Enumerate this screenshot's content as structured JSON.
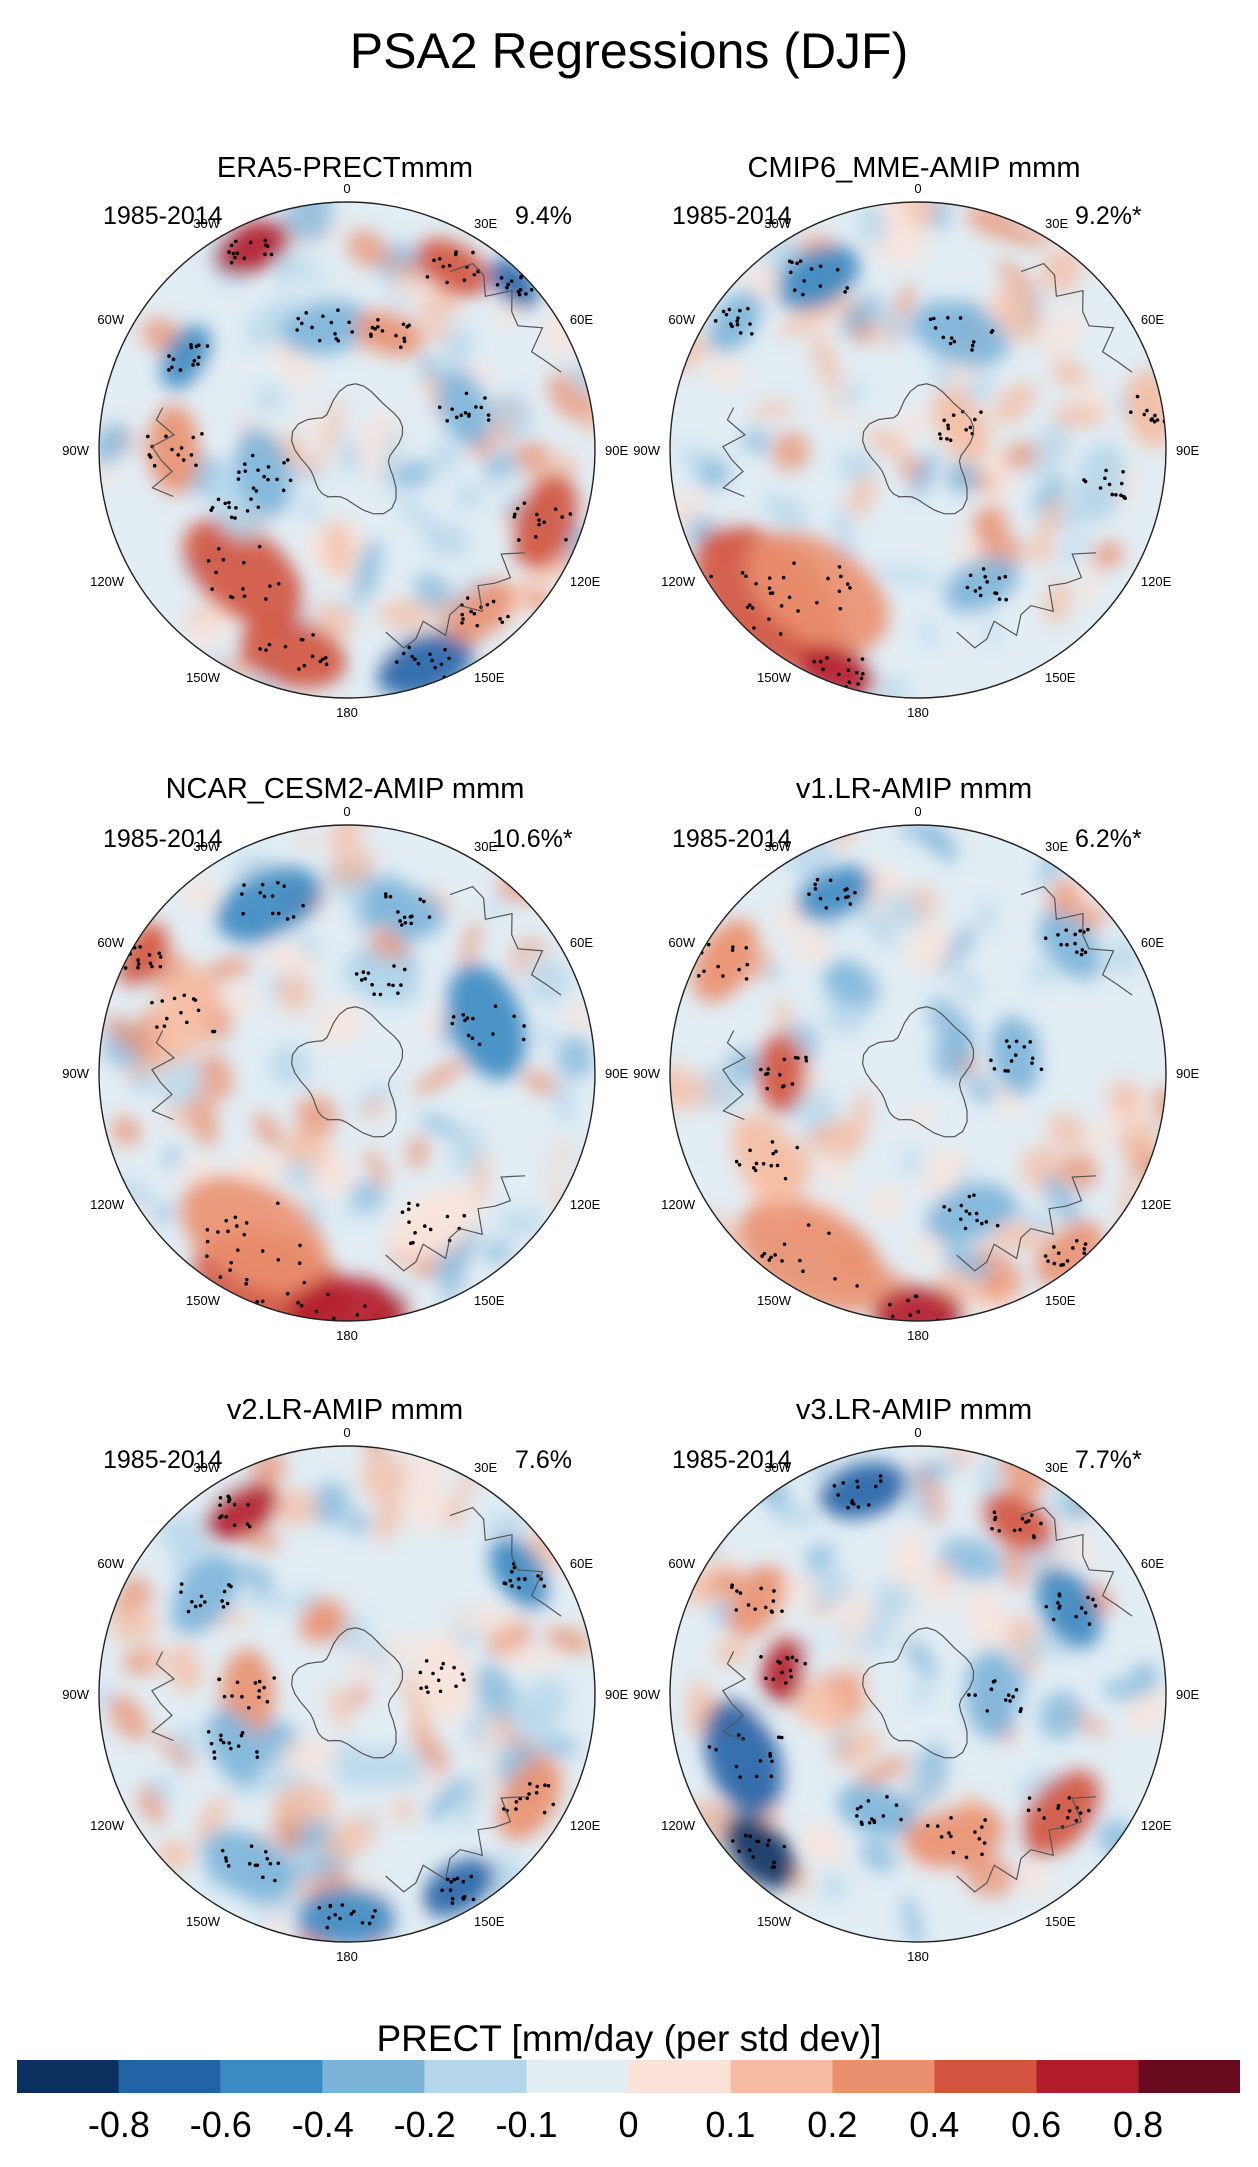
{
  "figure": {
    "title": "PSA2 Regressions (DJF)",
    "colorbar": {
      "label": "PRECT [mm/day (per std dev)]",
      "tick_labels": [
        "-0.8",
        "-0.6",
        "-0.4",
        "-0.2",
        "-0.1",
        "0",
        "0.1",
        "0.2",
        "0.4",
        "0.6",
        "0.8"
      ],
      "colors": [
        "#0a3060",
        "#2263a6",
        "#3c8ac2",
        "#7cb4d9",
        "#b4d6ea",
        "#e2edf4",
        "#fbe3d9",
        "#f6bca1",
        "#ea906f",
        "#d2533e",
        "#b31a2a",
        "#6a0a1e"
      ]
    },
    "longitude_labels": [
      "0",
      "30E",
      "60E",
      "90E",
      "120E",
      "150E",
      "180",
      "150W",
      "120W",
      "90W",
      "60W",
      "30W"
    ]
  },
  "panels": [
    {
      "title": "ERA5-PRECTmmm",
      "period": "1985-2014",
      "variance": "9.4%"
    },
    {
      "title": "CMIP6_MME-AMIP  mmm",
      "period": "1985-2014",
      "variance": "9.2%*"
    },
    {
      "title": "NCAR_CESM2-AMIP  mmm",
      "period": "1985-2014",
      "variance": "10.6%*"
    },
    {
      "title": "v1.LR-AMIP  mmm",
      "period": "1985-2014",
      "variance": "6.2%*"
    },
    {
      "title": "v2.LR-AMIP  mmm",
      "period": "1985-2014",
      "variance": "7.6%"
    },
    {
      "title": "v3.LR-AMIP  mmm",
      "period": "1985-2014",
      "variance": "7.7%*"
    }
  ]
}
